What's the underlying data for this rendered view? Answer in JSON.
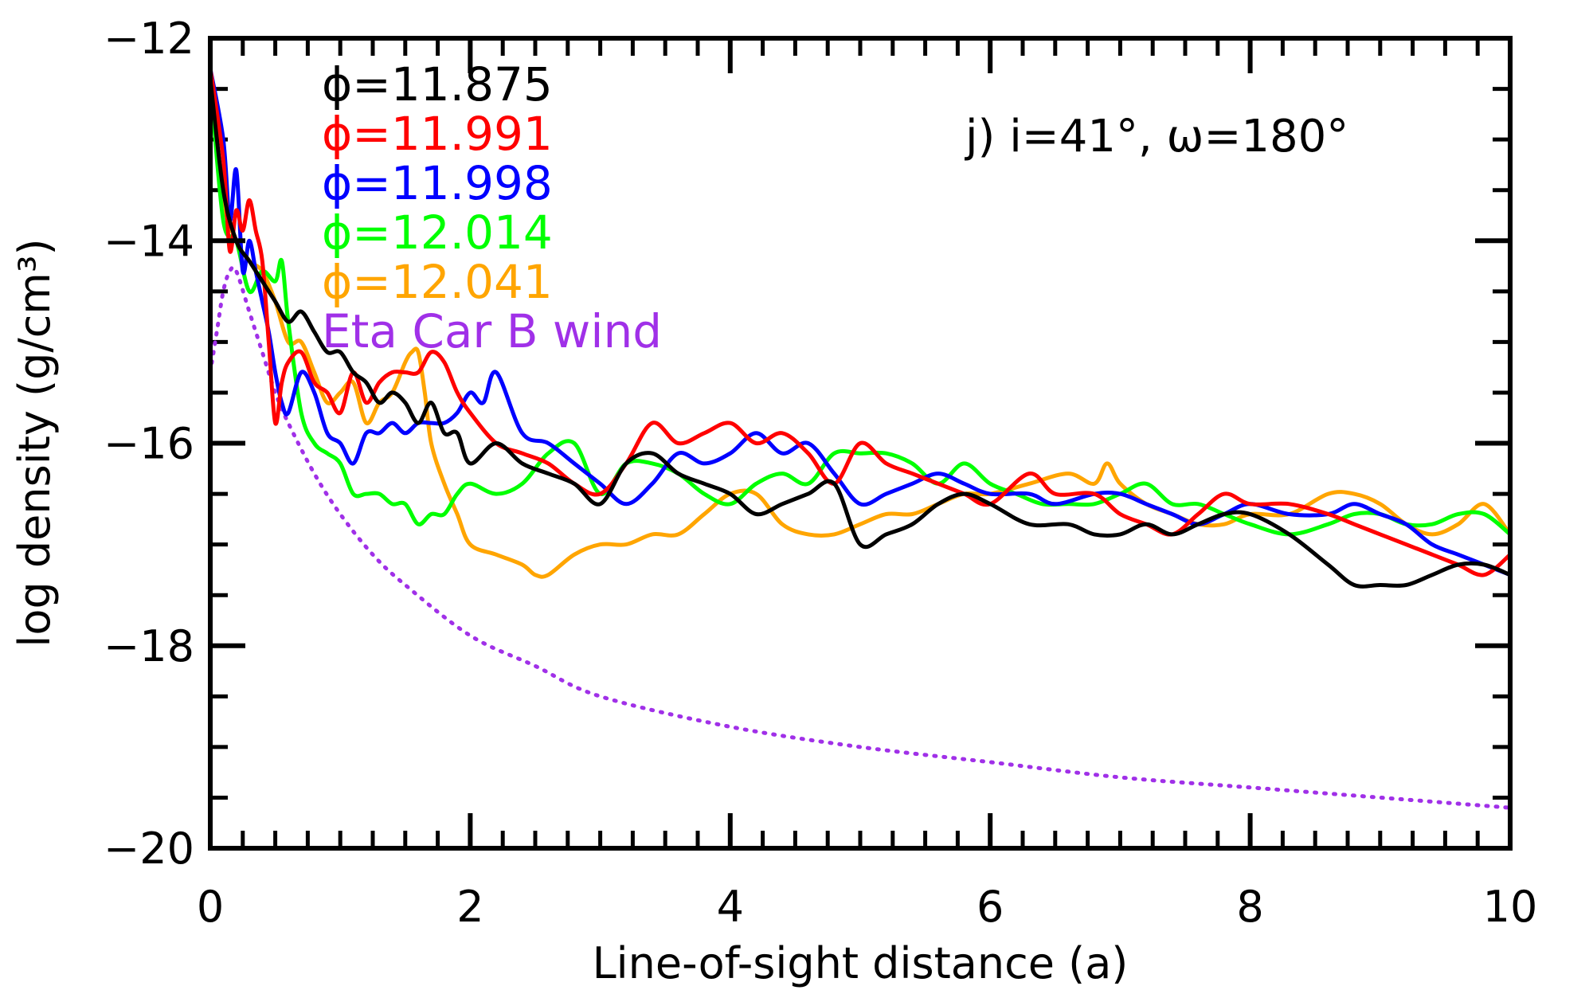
{
  "chart_data": {
    "type": "line",
    "title": "",
    "xlabel": "Line-of-sight distance (a)",
    "ylabel": "log density (g/cm³)",
    "xlim": [
      0,
      10
    ],
    "ylim": [
      -20,
      -12
    ],
    "x_ticks": [
      0,
      2,
      4,
      6,
      8,
      10
    ],
    "x_tick_labels": [
      "0",
      "2",
      "4",
      "6",
      "8",
      "10"
    ],
    "y_ticks": [
      -20,
      -18,
      -16,
      -14,
      -12
    ],
    "y_tick_labels": [
      "−20",
      "−18",
      "−16",
      "−14",
      "−12"
    ],
    "annotation": "j) i=41°, ω=180°",
    "legend_position": "top-left",
    "series": [
      {
        "name": "ϕ=11.875",
        "color": "#000000",
        "style": "solid",
        "x": [
          0.0,
          0.1,
          0.2,
          0.3,
          0.4,
          0.5,
          0.6,
          0.7,
          0.8,
          0.9,
          1.0,
          1.1,
          1.2,
          1.3,
          1.4,
          1.5,
          1.6,
          1.7,
          1.8,
          1.9,
          2.0,
          2.2,
          2.4,
          2.6,
          2.8,
          3.0,
          3.2,
          3.4,
          3.6,
          3.8,
          4.0,
          4.2,
          4.4,
          4.6,
          4.8,
          5.0,
          5.2,
          5.4,
          5.6,
          5.8,
          6.0,
          6.3,
          6.6,
          6.8,
          7.0,
          7.2,
          7.4,
          7.6,
          7.8,
          8.0,
          8.3,
          8.6,
          8.8,
          9.0,
          9.2,
          9.4,
          9.6,
          9.8,
          10.0
        ],
        "y": [
          -12.4,
          -13.5,
          -14.0,
          -14.2,
          -14.4,
          -14.6,
          -14.8,
          -14.7,
          -14.9,
          -15.1,
          -15.1,
          -15.3,
          -15.4,
          -15.6,
          -15.5,
          -15.6,
          -15.8,
          -15.6,
          -15.9,
          -15.9,
          -16.2,
          -16.0,
          -16.2,
          -16.3,
          -16.4,
          -16.6,
          -16.2,
          -16.1,
          -16.3,
          -16.4,
          -16.5,
          -16.7,
          -16.6,
          -16.5,
          -16.4,
          -17.0,
          -16.9,
          -16.8,
          -16.6,
          -16.5,
          -16.6,
          -16.8,
          -16.8,
          -16.9,
          -16.9,
          -16.8,
          -16.9,
          -16.8,
          -16.7,
          -16.7,
          -16.9,
          -17.2,
          -17.4,
          -17.4,
          -17.4,
          -17.3,
          -17.2,
          -17.2,
          -17.3
        ]
      },
      {
        "name": "ϕ=11.991",
        "color": "#ff0000",
        "style": "solid",
        "x": [
          0.0,
          0.1,
          0.15,
          0.2,
          0.25,
          0.3,
          0.35,
          0.4,
          0.45,
          0.5,
          0.55,
          0.6,
          0.7,
          0.8,
          0.9,
          1.0,
          1.1,
          1.2,
          1.3,
          1.4,
          1.5,
          1.6,
          1.7,
          1.8,
          1.9,
          2.0,
          2.2,
          2.4,
          2.6,
          2.8,
          3.0,
          3.2,
          3.4,
          3.6,
          3.8,
          4.0,
          4.2,
          4.4,
          4.6,
          4.8,
          5.0,
          5.2,
          5.4,
          5.6,
          5.8,
          6.0,
          6.3,
          6.5,
          6.8,
          7.0,
          7.2,
          7.4,
          7.6,
          7.8,
          8.0,
          8.3,
          8.6,
          8.8,
          9.0,
          9.2,
          9.4,
          9.6,
          9.8,
          10.0
        ],
        "y": [
          -12.3,
          -13.2,
          -14.1,
          -13.7,
          -13.9,
          -13.6,
          -13.9,
          -14.2,
          -15.0,
          -15.8,
          -15.4,
          -15.2,
          -15.1,
          -15.4,
          -15.5,
          -15.7,
          -15.3,
          -15.6,
          -15.4,
          -15.3,
          -15.3,
          -15.3,
          -15.1,
          -15.2,
          -15.5,
          -15.7,
          -16.0,
          -16.1,
          -16.2,
          -16.4,
          -16.5,
          -16.2,
          -15.8,
          -16.0,
          -15.9,
          -15.8,
          -16.0,
          -15.9,
          -16.1,
          -16.4,
          -16.0,
          -16.2,
          -16.3,
          -16.4,
          -16.5,
          -16.6,
          -16.3,
          -16.5,
          -16.5,
          -16.7,
          -16.8,
          -16.9,
          -16.7,
          -16.5,
          -16.6,
          -16.6,
          -16.7,
          -16.8,
          -16.9,
          -17.0,
          -17.1,
          -17.2,
          -17.3,
          -17.1
        ]
      },
      {
        "name": "ϕ=11.998",
        "color": "#0000ff",
        "style": "solid",
        "x": [
          0.0,
          0.1,
          0.15,
          0.2,
          0.25,
          0.3,
          0.35,
          0.4,
          0.45,
          0.5,
          0.55,
          0.6,
          0.7,
          0.8,
          0.9,
          1.0,
          1.1,
          1.2,
          1.3,
          1.4,
          1.5,
          1.6,
          1.7,
          1.8,
          1.9,
          2.0,
          2.1,
          2.2,
          2.4,
          2.6,
          2.8,
          3.0,
          3.2,
          3.4,
          3.6,
          3.8,
          4.0,
          4.2,
          4.4,
          4.6,
          4.8,
          5.0,
          5.2,
          5.4,
          5.6,
          5.8,
          6.0,
          6.3,
          6.5,
          6.8,
          7.0,
          7.2,
          7.4,
          7.6,
          7.8,
          8.0,
          8.3,
          8.6,
          8.8,
          9.0,
          9.2,
          9.4,
          9.6,
          9.8,
          10.0
        ],
        "y": [
          -12.3,
          -13.0,
          -13.8,
          -13.3,
          -14.3,
          -14.0,
          -14.3,
          -14.6,
          -14.9,
          -15.3,
          -15.6,
          -15.7,
          -15.3,
          -15.5,
          -15.9,
          -16.0,
          -16.2,
          -15.9,
          -15.9,
          -15.8,
          -15.9,
          -15.8,
          -15.8,
          -15.8,
          -15.7,
          -15.5,
          -15.6,
          -15.3,
          -15.9,
          -16.0,
          -16.2,
          -16.4,
          -16.6,
          -16.4,
          -16.1,
          -16.2,
          -16.1,
          -15.9,
          -16.1,
          -16.0,
          -16.3,
          -16.6,
          -16.5,
          -16.4,
          -16.3,
          -16.4,
          -16.5,
          -16.5,
          -16.6,
          -16.5,
          -16.5,
          -16.6,
          -16.7,
          -16.8,
          -16.7,
          -16.6,
          -16.7,
          -16.7,
          -16.6,
          -16.7,
          -16.8,
          -17.0,
          -17.1,
          -17.2,
          -17.3
        ]
      },
      {
        "name": "ϕ=12.014",
        "color": "#00ff00",
        "style": "solid",
        "x": [
          0.0,
          0.1,
          0.2,
          0.3,
          0.4,
          0.5,
          0.55,
          0.6,
          0.7,
          0.8,
          0.9,
          1.0,
          1.1,
          1.2,
          1.3,
          1.4,
          1.5,
          1.6,
          1.7,
          1.8,
          1.9,
          2.0,
          2.2,
          2.4,
          2.6,
          2.8,
          3.0,
          3.2,
          3.4,
          3.6,
          3.8,
          4.0,
          4.2,
          4.4,
          4.6,
          4.8,
          5.0,
          5.2,
          5.4,
          5.6,
          5.8,
          6.0,
          6.2,
          6.4,
          6.6,
          6.8,
          7.0,
          7.2,
          7.4,
          7.6,
          7.8,
          8.0,
          8.3,
          8.6,
          8.8,
          9.0,
          9.2,
          9.4,
          9.6,
          9.8,
          10.0
        ],
        "y": [
          -12.4,
          -13.8,
          -14.0,
          -14.5,
          -14.3,
          -14.4,
          -14.2,
          -14.8,
          -15.7,
          -16.0,
          -16.1,
          -16.2,
          -16.5,
          -16.5,
          -16.5,
          -16.6,
          -16.6,
          -16.8,
          -16.7,
          -16.7,
          -16.5,
          -16.4,
          -16.5,
          -16.4,
          -16.1,
          -16.0,
          -16.5,
          -16.2,
          -16.2,
          -16.3,
          -16.5,
          -16.6,
          -16.4,
          -16.3,
          -16.4,
          -16.1,
          -16.1,
          -16.1,
          -16.2,
          -16.4,
          -16.2,
          -16.4,
          -16.5,
          -16.6,
          -16.6,
          -16.6,
          -16.5,
          -16.4,
          -16.6,
          -16.6,
          -16.7,
          -16.8,
          -16.9,
          -16.8,
          -16.7,
          -16.7,
          -16.8,
          -16.8,
          -16.7,
          -16.7,
          -16.9
        ]
      },
      {
        "name": "ϕ=12.041",
        "color": "#ffa500",
        "style": "solid",
        "x": [
          0.0,
          0.1,
          0.2,
          0.3,
          0.4,
          0.5,
          0.6,
          0.7,
          0.8,
          0.9,
          1.0,
          1.1,
          1.2,
          1.3,
          1.4,
          1.5,
          1.55,
          1.6,
          1.65,
          1.7,
          1.8,
          1.9,
          2.0,
          2.2,
          2.4,
          2.5,
          2.6,
          2.8,
          3.0,
          3.2,
          3.4,
          3.6,
          3.8,
          4.0,
          4.2,
          4.4,
          4.6,
          4.8,
          5.0,
          5.2,
          5.4,
          5.6,
          5.8,
          6.0,
          6.3,
          6.6,
          6.8,
          6.9,
          7.0,
          7.2,
          7.4,
          7.6,
          7.8,
          8.0,
          8.3,
          8.6,
          8.8,
          9.0,
          9.2,
          9.4,
          9.6,
          9.8,
          10.0
        ],
        "y": [
          -12.5,
          -13.6,
          -14.0,
          -14.2,
          -14.3,
          -14.6,
          -15.0,
          -15.0,
          -15.3,
          -15.6,
          -15.5,
          -15.4,
          -15.8,
          -15.6,
          -15.5,
          -15.2,
          -15.1,
          -15.1,
          -15.5,
          -16.0,
          -16.4,
          -16.7,
          -17.0,
          -17.1,
          -17.2,
          -17.3,
          -17.3,
          -17.1,
          -17.0,
          -17.0,
          -16.9,
          -16.9,
          -16.7,
          -16.5,
          -16.5,
          -16.8,
          -16.9,
          -16.9,
          -16.8,
          -16.7,
          -16.7,
          -16.6,
          -16.5,
          -16.5,
          -16.4,
          -16.3,
          -16.4,
          -16.2,
          -16.4,
          -16.6,
          -16.7,
          -16.8,
          -16.8,
          -16.7,
          -16.7,
          -16.5,
          -16.5,
          -16.6,
          -16.8,
          -16.9,
          -16.8,
          -16.6,
          -16.9
        ]
      },
      {
        "name": "Eta Car B wind",
        "color": "#a030e8",
        "style": "dotted",
        "x": [
          0.0,
          0.05,
          0.1,
          0.15,
          0.2,
          0.3,
          0.4,
          0.5,
          0.6,
          0.8,
          1.0,
          1.25,
          1.5,
          2.0,
          2.5,
          3.0,
          4.0,
          5.0,
          6.0,
          7.0,
          8.0,
          9.0,
          10.0
        ],
        "y": [
          -15.3,
          -14.9,
          -14.5,
          -14.3,
          -14.3,
          -14.7,
          -15.1,
          -15.5,
          -15.8,
          -16.3,
          -16.7,
          -17.1,
          -17.4,
          -17.9,
          -18.2,
          -18.5,
          -18.8,
          -19.0,
          -19.15,
          -19.3,
          -19.4,
          -19.5,
          -19.6
        ]
      }
    ]
  }
}
